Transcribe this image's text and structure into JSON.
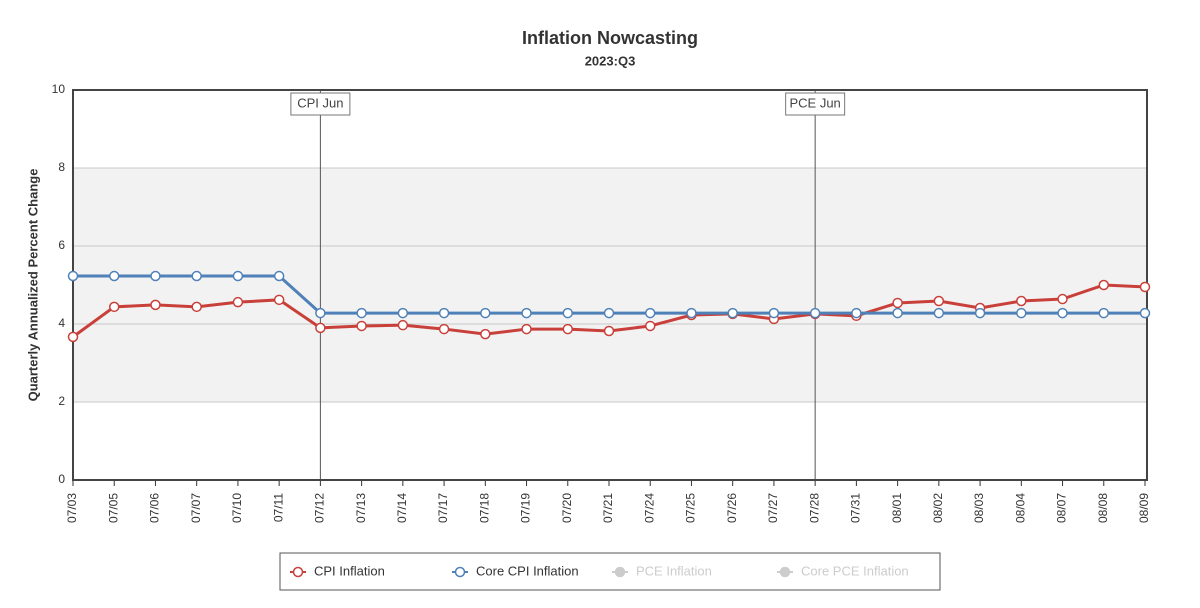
{
  "chart_data": {
    "type": "line",
    "title": "Inflation Nowcasting",
    "subtitle": "2023:Q3",
    "y_label": "Quarterly Annualized Percent Change",
    "categories": [
      "07/03",
      "07/05",
      "07/06",
      "07/07",
      "07/10",
      "07/11",
      "07/12",
      "07/13",
      "07/14",
      "07/17",
      "07/18",
      "07/19",
      "07/20",
      "07/21",
      "07/24",
      "07/25",
      "07/26",
      "07/27",
      "07/28",
      "07/31",
      "08/01",
      "08/02",
      "08/03",
      "08/04",
      "08/07",
      "08/08",
      "08/09"
    ],
    "series": [
      {
        "name": "CPI Inflation",
        "color": "#c9403a",
        "visible": true,
        "values": [
          3.67,
          4.44,
          4.49,
          4.44,
          4.56,
          4.62,
          3.9,
          3.95,
          3.97,
          3.87,
          3.74,
          3.87,
          3.87,
          3.82,
          3.95,
          4.23,
          4.26,
          4.13,
          4.26,
          4.21,
          4.54,
          4.59,
          4.41,
          4.59,
          4.64,
          5.0,
          4.95
        ]
      },
      {
        "name": "Core CPI Inflation",
        "color": "#4f81b8",
        "visible": true,
        "values": [
          5.23,
          5.23,
          5.23,
          5.23,
          5.23,
          5.23,
          4.28,
          4.28,
          4.28,
          4.28,
          4.28,
          4.28,
          4.28,
          4.28,
          4.28,
          4.28,
          4.28,
          4.28,
          4.28,
          4.28,
          4.28,
          4.28,
          4.28,
          4.28,
          4.28,
          4.28,
          4.28
        ]
      },
      {
        "name": "PCE Inflation",
        "color": "#cccccc",
        "visible": false
      },
      {
        "name": "Core PCE Inflation",
        "color": "#cccccc",
        "visible": false
      }
    ],
    "annotations": [
      {
        "label": "CPI Jun",
        "category": "07/12"
      },
      {
        "label": "PCE Jun",
        "category": "07/28"
      }
    ],
    "plot_band": [
      2,
      8
    ],
    "ylim": [
      0,
      10
    ],
    "yticks": [
      0,
      2,
      4,
      6,
      8,
      10
    ],
    "grid": true
  }
}
